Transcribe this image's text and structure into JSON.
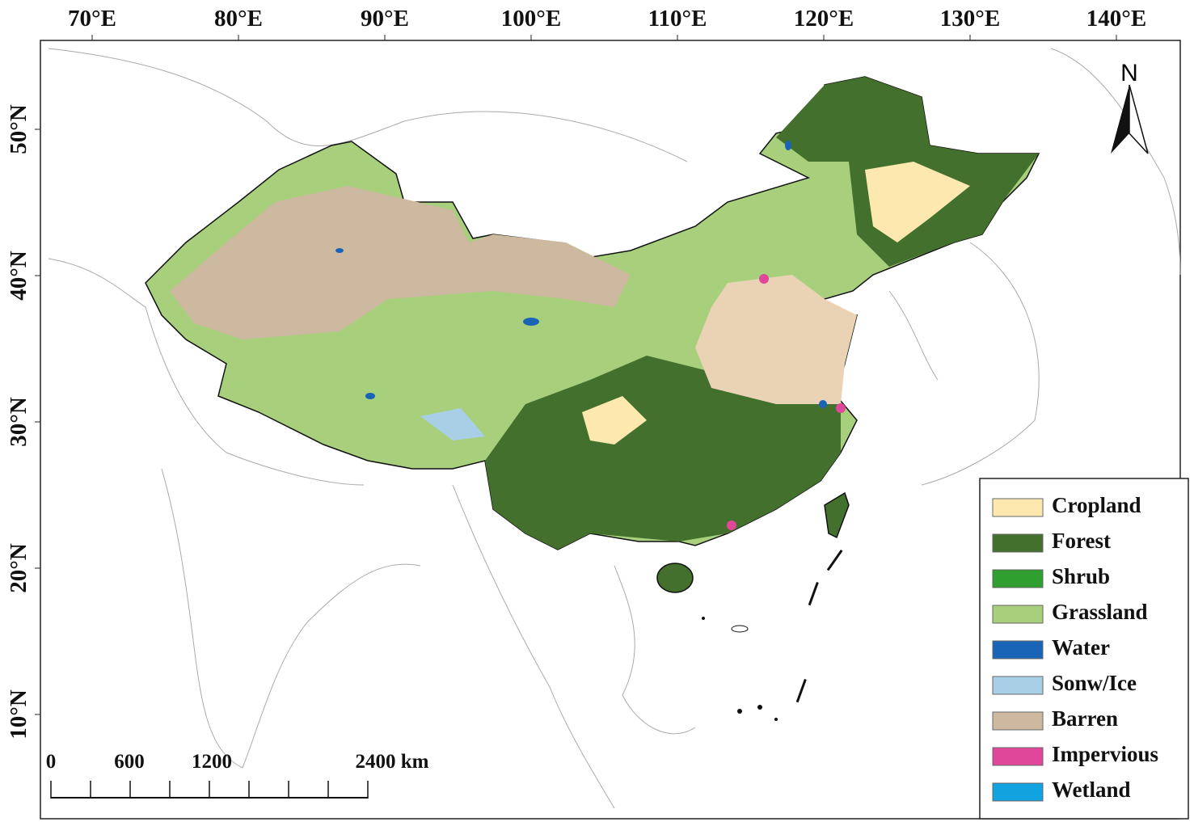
{
  "map": {
    "longitude_labels": [
      "70°E",
      "80°E",
      "90°E",
      "100°E",
      "110°E",
      "120°E",
      "130°E",
      "140°E"
    ],
    "latitude_labels": [
      "50°N",
      "40°N",
      "30°N",
      "20°N",
      "10°N"
    ],
    "north_arrow": "N",
    "scale_bar": {
      "labels": [
        "0",
        "600",
        "1200",
        "2400 km"
      ]
    },
    "legend": [
      {
        "name": "Cropland",
        "color": "#fde9b0"
      },
      {
        "name": "Forest",
        "color": "#44702e"
      },
      {
        "name": "Shrub",
        "color": "#2fa02f"
      },
      {
        "name": "Grassland",
        "color": "#a8cf7c"
      },
      {
        "name": "Water",
        "color": "#1a64b8"
      },
      {
        "name": "Sonw/Ice",
        "color": "#a9cfe6"
      },
      {
        "name": "Barren",
        "color": "#cdb9a0"
      },
      {
        "name": "Impervious",
        "color": "#e0479a"
      },
      {
        "name": "Wetland",
        "color": "#11a3e0"
      }
    ]
  }
}
